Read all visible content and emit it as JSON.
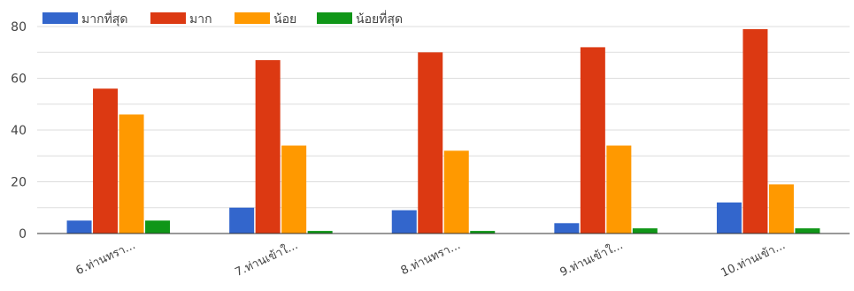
{
  "chart_data": {
    "type": "bar",
    "title": "",
    "xlabel": "",
    "ylabel": "",
    "categories": [
      "6.ท่านทรา...",
      "7.ท่านเข้าใ...",
      "8.ท่านทรา...",
      "9.ท่านเข้าใ...",
      "10.ท่านเข้า..."
    ],
    "ylim": [
      0,
      80
    ],
    "yticks": [
      0,
      20,
      40,
      60,
      80
    ],
    "grid": true,
    "legend_position": "top-left",
    "series": [
      {
        "name": "มากที่สุด",
        "color": "#3366cc",
        "values": [
          5,
          10,
          9,
          4,
          12
        ]
      },
      {
        "name": "มาก",
        "color": "#dc3912",
        "values": [
          56,
          67,
          70,
          72,
          79
        ]
      },
      {
        "name": "น้อย",
        "color": "#ff9900",
        "values": [
          46,
          34,
          32,
          34,
          19
        ]
      },
      {
        "name": "น้อยที่สุด",
        "color": "#109618",
        "values": [
          5,
          1,
          1,
          2,
          2
        ]
      }
    ]
  }
}
